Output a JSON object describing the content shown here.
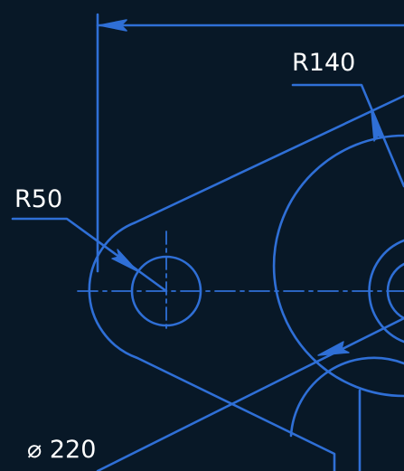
{
  "drawing": {
    "background_color": "#081827",
    "line_color": "#2f6fd6",
    "text_color": "#ffffff",
    "labels": {
      "r140": "R140",
      "r50": "R50",
      "d220": "⌀ 220"
    }
  }
}
